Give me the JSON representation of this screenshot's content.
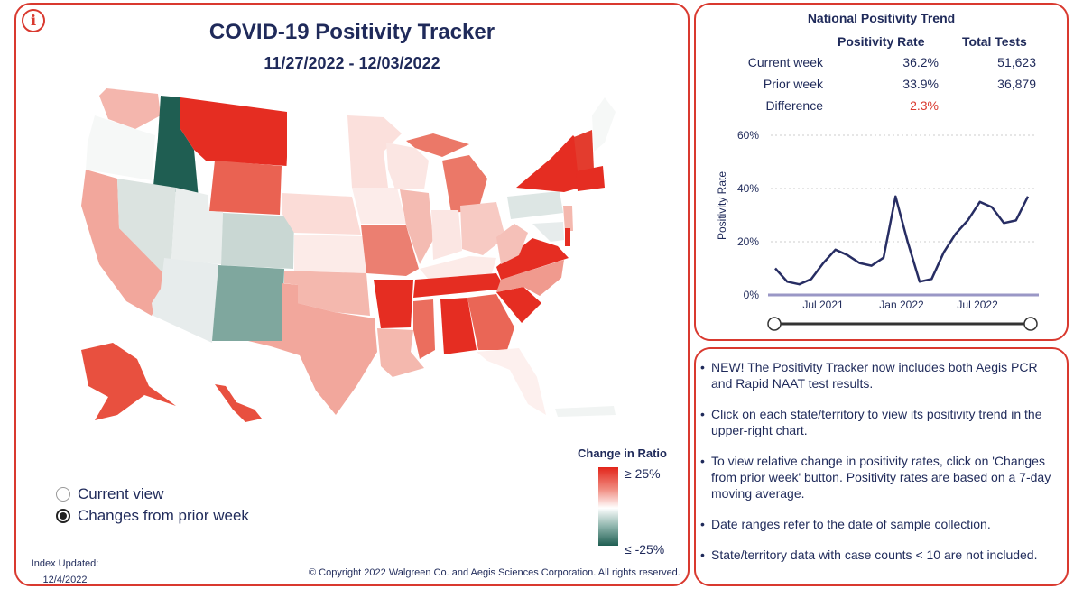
{
  "header": {
    "title": "COVID-19 Positivity Tracker",
    "date_range": "11/27/2022 - 12/03/2022",
    "info_icon": "i"
  },
  "legend": {
    "title": "Change in Ratio",
    "max_label": "≥ 25%",
    "min_label": "≤ -25%",
    "colors": {
      "high": "#e2251a",
      "mid": "#ffffff",
      "low": "#1f5e52"
    }
  },
  "view_toggle": {
    "options": [
      {
        "label": "Current view",
        "selected": false
      },
      {
        "label": "Changes from prior week",
        "selected": true
      }
    ]
  },
  "footer": {
    "index_label": "Index Updated:",
    "index_date": "12/4/2022",
    "copyright": "© Copyright 2022 Walgreen Co. and Aegis Sciences Corporation. All rights reserved."
  },
  "trend": {
    "title": "National Positivity Trend",
    "col_rate": "Positivity Rate",
    "col_tests": "Total Tests",
    "rows": [
      {
        "label": "Current week",
        "rate": "36.2%",
        "tests": "51,623"
      },
      {
        "label": "Prior week",
        "rate": "33.9%",
        "tests": "36,879"
      },
      {
        "label": "Difference",
        "rate": "2.3%",
        "tests": ""
      }
    ]
  },
  "chart_data": {
    "type": "line",
    "ylabel": "Positivity Rate",
    "y_ticks": [
      "0%",
      "20%",
      "40%",
      "60%"
    ],
    "x_ticks": [
      "Jul 2021",
      "Jan 2022",
      "Jul 2022"
    ],
    "ylim": [
      0,
      60
    ],
    "line_color": "#272d63",
    "x": [
      "2021-03",
      "2021-04",
      "2021-05",
      "2021-06",
      "2021-07",
      "2021-08",
      "2021-09",
      "2021-10",
      "2021-11",
      "2021-12",
      "2022-01",
      "2022-02",
      "2022-03",
      "2022-04",
      "2022-05",
      "2022-06",
      "2022-07",
      "2022-08",
      "2022-09",
      "2022-10",
      "2022-11",
      "2022-12"
    ],
    "series": [
      {
        "values": [
          10,
          5,
          4,
          6,
          12,
          17,
          15,
          12,
          11,
          14,
          37,
          20,
          5,
          6,
          16,
          23,
          28,
          35,
          33,
          27,
          28,
          37
        ]
      }
    ]
  },
  "notes": [
    "NEW! The Positivity Tracker now includes both Aegis PCR and Rapid NAAT test results.",
    "Click on each state/territory to view its positivity trend in the upper-right chart.",
    "To view relative change in positivity rates, click on 'Changes from prior week' button. Positivity rates are based on a 7-day moving average.",
    "Date ranges refer to the date of sample collection.",
    "State/territory data with case counts < 10 are not included."
  ]
}
